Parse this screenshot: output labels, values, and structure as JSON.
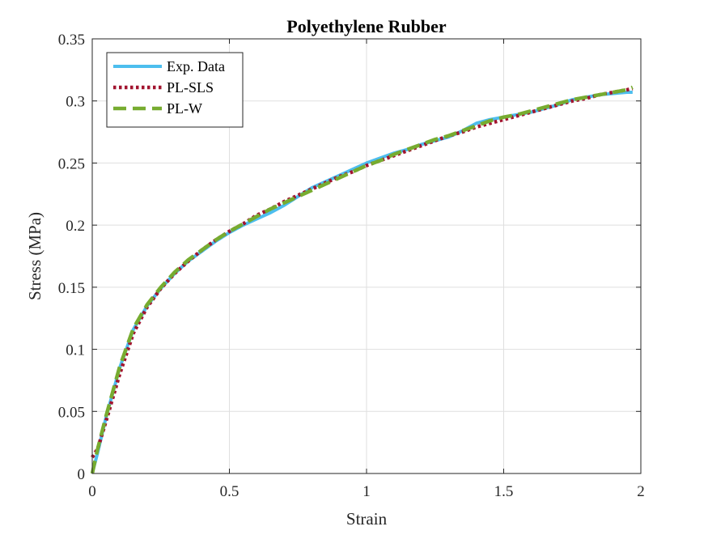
{
  "chart_data": {
    "type": "line",
    "title": "Polyethylene Rubber",
    "xlabel": "Strain",
    "ylabel": "Stress (MPa)",
    "xlim": [
      0,
      2
    ],
    "ylim": [
      0,
      0.35
    ],
    "xticks": [
      0,
      0.5,
      1,
      1.5,
      2
    ],
    "xtick_labels": [
      "0",
      "0.5",
      "1",
      "1.5",
      "2"
    ],
    "yticks": [
      0,
      0.05,
      0.1,
      0.15,
      0.2,
      0.25,
      0.3,
      0.35
    ],
    "ytick_labels": [
      "0",
      "0.05",
      "0.1",
      "0.15",
      "0.2",
      "0.25",
      "0.3",
      "0.35"
    ],
    "grid": true,
    "legend_position": "top-left",
    "series": [
      {
        "name": "Exp. Data",
        "color": "#4DBEEE",
        "style": "solid",
        "x": [
          0,
          0.02,
          0.05,
          0.1,
          0.15,
          0.2,
          0.25,
          0.3,
          0.35,
          0.4,
          0.45,
          0.5,
          0.55,
          0.6,
          0.65,
          0.7,
          0.75,
          0.8,
          0.85,
          0.9,
          0.95,
          1.0,
          1.05,
          1.1,
          1.15,
          1.2,
          1.25,
          1.3,
          1.35,
          1.4,
          1.45,
          1.5,
          1.55,
          1.6,
          1.65,
          1.7,
          1.75,
          1.8,
          1.85,
          1.9,
          1.95,
          1.97
        ],
        "y": [
          0,
          0.017,
          0.045,
          0.085,
          0.116,
          0.135,
          0.149,
          0.161,
          0.171,
          0.179,
          0.187,
          0.194,
          0.2,
          0.205,
          0.21,
          0.216,
          0.223,
          0.23,
          0.235,
          0.24,
          0.245,
          0.25,
          0.254,
          0.258,
          0.261,
          0.265,
          0.268,
          0.271,
          0.276,
          0.282,
          0.285,
          0.287,
          0.289,
          0.291,
          0.294,
          0.297,
          0.301,
          0.303,
          0.305,
          0.306,
          0.307,
          0.307
        ]
      },
      {
        "name": "PL-SLS",
        "color": "#A2142F",
        "style": "dotted",
        "x": [
          0,
          0.02,
          0.05,
          0.1,
          0.15,
          0.2,
          0.25,
          0.3,
          0.35,
          0.4,
          0.45,
          0.5,
          0.55,
          0.6,
          0.65,
          0.7,
          0.75,
          0.8,
          0.85,
          0.9,
          0.95,
          1.0,
          1.05,
          1.1,
          1.15,
          1.2,
          1.25,
          1.3,
          1.35,
          1.4,
          1.45,
          1.5,
          1.55,
          1.6,
          1.65,
          1.7,
          1.75,
          1.8,
          1.85,
          1.9,
          1.95,
          1.97
        ],
        "y": [
          0.013,
          0.02,
          0.042,
          0.08,
          0.113,
          0.134,
          0.149,
          0.161,
          0.171,
          0.18,
          0.188,
          0.195,
          0.201,
          0.208,
          0.213,
          0.219,
          0.224,
          0.229,
          0.234,
          0.239,
          0.243,
          0.248,
          0.252,
          0.256,
          0.26,
          0.264,
          0.268,
          0.272,
          0.275,
          0.279,
          0.282,
          0.285,
          0.288,
          0.291,
          0.294,
          0.297,
          0.3,
          0.302,
          0.305,
          0.307,
          0.309,
          0.31
        ]
      },
      {
        "name": "PL-W",
        "color": "#77AC30",
        "style": "dashed",
        "x": [
          0,
          0.02,
          0.05,
          0.1,
          0.15,
          0.2,
          0.25,
          0.3,
          0.35,
          0.4,
          0.45,
          0.5,
          0.55,
          0.6,
          0.65,
          0.7,
          0.75,
          0.8,
          0.85,
          0.9,
          0.95,
          1.0,
          1.05,
          1.1,
          1.15,
          1.2,
          1.25,
          1.3,
          1.35,
          1.4,
          1.45,
          1.5,
          1.55,
          1.6,
          1.65,
          1.7,
          1.75,
          1.8,
          1.85,
          1.9,
          1.95,
          1.97
        ],
        "y": [
          0,
          0.02,
          0.046,
          0.086,
          0.117,
          0.136,
          0.15,
          0.162,
          0.172,
          0.18,
          0.188,
          0.195,
          0.201,
          0.207,
          0.213,
          0.218,
          0.223,
          0.228,
          0.233,
          0.238,
          0.243,
          0.248,
          0.252,
          0.257,
          0.261,
          0.265,
          0.269,
          0.272,
          0.276,
          0.28,
          0.284,
          0.287,
          0.289,
          0.292,
          0.295,
          0.298,
          0.301,
          0.303,
          0.305,
          0.307,
          0.309,
          0.311
        ]
      }
    ]
  }
}
